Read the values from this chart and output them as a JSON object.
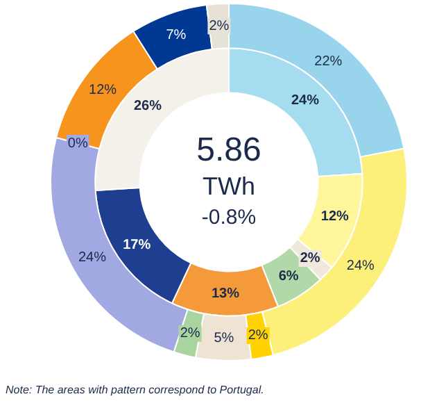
{
  "chart_data": {
    "type": "donut",
    "series": [
      {
        "values": [
          22,
          24,
          2,
          5,
          2,
          24,
          0,
          12,
          7,
          2
        ],
        "value_labels": [
          "22%",
          "24%",
          "2%",
          "5%",
          "2%",
          "24%",
          "0%",
          "12%",
          "7%",
          "2%"
        ],
        "colors": [
          "#98d5ec",
          "#fdf07a",
          "#ffd200",
          "#efe4d4",
          "#a9d4a0",
          "#a1a8e2",
          "#a1a8e2",
          "#f7941d",
          "#003893",
          "#e6e2d8"
        ]
      },
      {
        "values": [
          24,
          12,
          2,
          6,
          13,
          17,
          26
        ],
        "value_labels": [
          "24%",
          "12%",
          "2%",
          "6%",
          "13%",
          "17%",
          "26%"
        ],
        "colors": [
          "#a6dcef",
          "#fff59a",
          "#f0e8dc",
          "#b0d8a8",
          "#f59a3a",
          "#1e3f8f",
          "#f3f1ea"
        ]
      }
    ],
    "legend": false,
    "annotations": [
      "5.86",
      "TWh",
      "-0.8%",
      "Note: The areas with pattern correspond to Portugal."
    ]
  }
}
